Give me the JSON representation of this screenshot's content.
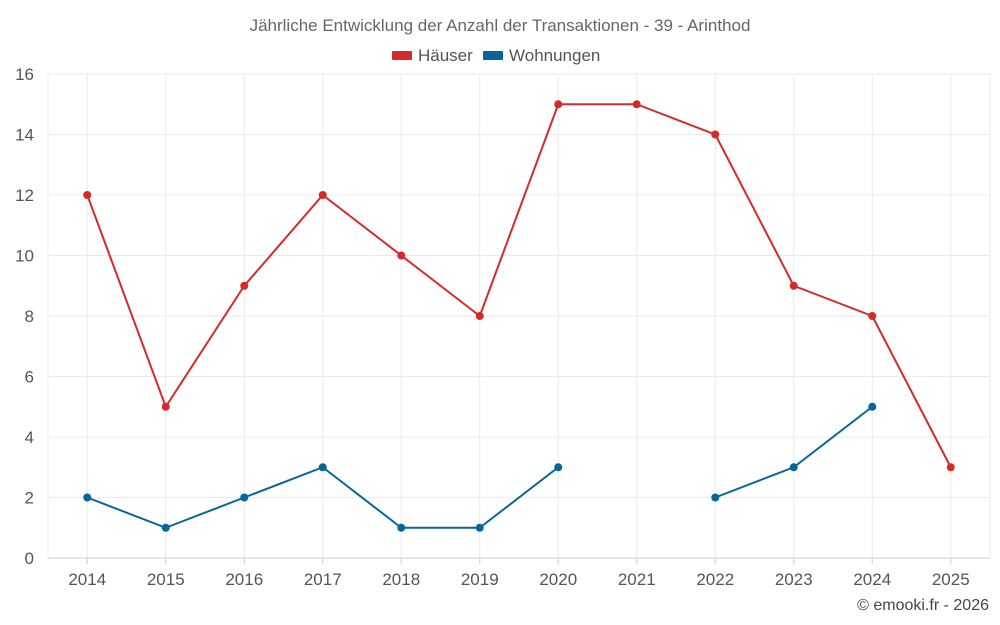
{
  "chart_data": {
    "type": "line",
    "title": "Jährliche Entwicklung der Anzahl der Transaktionen - 39 - Arinthod",
    "xlabel": "",
    "ylabel": "",
    "categories": [
      "2014",
      "2015",
      "2016",
      "2017",
      "2018",
      "2019",
      "2020",
      "2021",
      "2022",
      "2023",
      "2024",
      "2025"
    ],
    "ylim": [
      0,
      16
    ],
    "yticks": [
      "0",
      "2",
      "4",
      "6",
      "8",
      "10",
      "12",
      "14",
      "16"
    ],
    "grid": true,
    "legend_position": "top-center",
    "series": [
      {
        "name": "Häuser",
        "color": "#d42a2a",
        "values": [
          12,
          5,
          9,
          12,
          10,
          8,
          15,
          15,
          14,
          9,
          8,
          3
        ]
      },
      {
        "name": "Wohnungen",
        "color": "#07659b",
        "values": [
          2,
          1,
          2,
          3,
          1,
          1,
          3,
          null,
          2,
          3,
          5,
          null
        ]
      }
    ]
  },
  "credit": "© emooki.fr - 2026"
}
